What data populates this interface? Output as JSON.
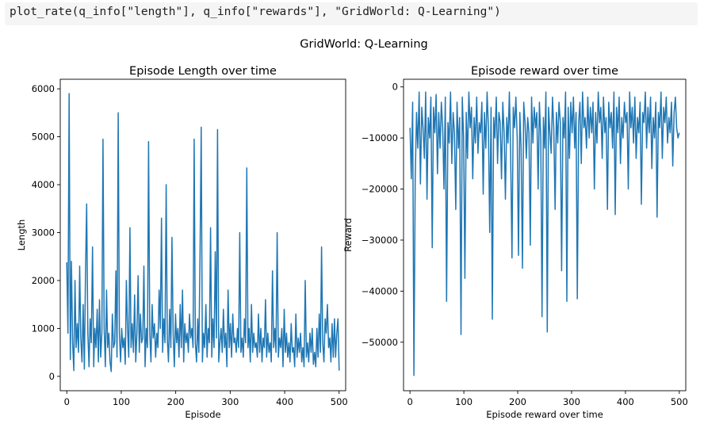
{
  "code": {
    "text": "plot_rate(q_info[\"length\"], q_info[\"rewards\"], \"GridWorld: Q-Learning\")"
  },
  "figure": {
    "suptitle": "GridWorld: Q-Learning",
    "line_color": "#1f77b4"
  },
  "chart_data": [
    {
      "type": "line",
      "title": "Episode Length over time",
      "xlabel": "Episode",
      "ylabel": "Length",
      "xlim": [
        -12,
        512
      ],
      "ylim": [
        -300,
        6200
      ],
      "xticks": [
        0,
        100,
        200,
        300,
        400,
        500
      ],
      "yticks": [
        0,
        1000,
        2000,
        3000,
        4000,
        5000,
        6000
      ],
      "tick_labels_x": [
        "0",
        "100",
        "200",
        "300",
        "400",
        "500"
      ],
      "tick_labels_y": [
        "0",
        "1000",
        "2000",
        "3000",
        "4000",
        "5000",
        "6000"
      ],
      "grid": false,
      "series": [
        {
          "values": [
            2380,
            900,
            5900,
            350,
            2400,
            700,
            120,
            2000,
            600,
            1100,
            500,
            2300,
            800,
            300,
            1500,
            150,
            2100,
            3600,
            900,
            200,
            1200,
            700,
            2700,
            200,
            1000,
            600,
            1400,
            300,
            1600,
            400,
            900,
            4950,
            1000,
            200,
            1800,
            600,
            900,
            300,
            100,
            1300,
            600,
            700,
            2200,
            400,
            5500,
            900,
            300,
            1000,
            600,
            800,
            250,
            2000,
            1000,
            400,
            3100,
            600,
            1100,
            500,
            1700,
            300,
            900,
            2100,
            500,
            1300,
            700,
            800,
            2300,
            200,
            1000,
            600,
            4900,
            900,
            300,
            1500,
            800,
            1100,
            400,
            900,
            600,
            1800,
            1000,
            3300,
            500,
            1200,
            700,
            4000,
            800,
            300,
            1400,
            600,
            2900,
            900,
            200,
            1300,
            700,
            1000,
            400,
            1500,
            600,
            1800,
            300,
            1100,
            700,
            900,
            500,
            1300,
            800,
            1000,
            600,
            4950,
            700,
            300,
            1200,
            500,
            2500,
            5200,
            300,
            900,
            600,
            1500,
            400,
            1000,
            700,
            3100,
            400,
            1200,
            600,
            2600,
            800,
            5150,
            300,
            700,
            1000,
            500,
            1400,
            600,
            900,
            200,
            1800,
            600,
            1100,
            400,
            1300,
            700,
            800,
            500,
            1000,
            600,
            3000,
            500,
            800,
            400,
            1200,
            700,
            4350,
            600,
            1000,
            300,
            1500,
            500,
            900,
            600,
            700,
            400,
            1300,
            500,
            1000,
            300,
            800,
            600,
            1600,
            400,
            900,
            500,
            700,
            300,
            2200,
            600,
            1000,
            500,
            3000,
            400,
            800,
            600,
            1000,
            200,
            1400,
            500,
            900,
            400,
            700,
            300,
            1100,
            500,
            600,
            200,
            1300,
            400,
            800,
            500,
            900,
            300,
            600,
            200,
            2000,
            400,
            700,
            300,
            900,
            500,
            1000,
            250,
            500,
            200,
            1000,
            400,
            1300,
            500,
            2700,
            700,
            300,
            1200,
            900,
            1500,
            600,
            800,
            300,
            1100,
            400,
            1200,
            400,
            900,
            1200,
            120
          ]
        }
      ]
    },
    {
      "type": "line",
      "title": "Episode reward over time",
      "xlabel": "Episode reward over time",
      "ylabel": "Reward",
      "xlim": [
        -12,
        512
      ],
      "ylim": [
        -59500,
        1500
      ],
      "xticks": [
        0,
        100,
        200,
        300,
        400,
        500
      ],
      "yticks": [
        0,
        -10000,
        -20000,
        -30000,
        -40000,
        -50000
      ],
      "tick_labels_x": [
        "0",
        "100",
        "200",
        "300",
        "400",
        "500"
      ],
      "tick_labels_y": [
        "0",
        "−10000",
        "−20000",
        "−30000",
        "−40000",
        "−50000"
      ],
      "grid": false,
      "series": [
        {
          "values": [
            -8000,
            -18000,
            -3000,
            -56500,
            -18500,
            -5000,
            -12000,
            -1000,
            -19000,
            -4000,
            -8000,
            -14000,
            -1000,
            -22000,
            -6000,
            -10000,
            -2000,
            -31500,
            -4000,
            -9000,
            -1500,
            -17000,
            -5000,
            -12000,
            -3000,
            -8000,
            -20000,
            -2000,
            -42000,
            -7000,
            -11000,
            -1000,
            -15000,
            -5000,
            -9000,
            -24000,
            -3000,
            -12000,
            -6000,
            -48500,
            -2000,
            -10000,
            -37500,
            -5000,
            -14000,
            -1000,
            -8000,
            -4000,
            -18000,
            -6000,
            -11000,
            -2000,
            -13000,
            -7000,
            -9000,
            -3000,
            -21000,
            -5000,
            -12000,
            -1000,
            -8000,
            -28500,
            -4000,
            -45500,
            -6000,
            -10000,
            -2000,
            -15000,
            -5000,
            -7000,
            -18000,
            -3000,
            -9000,
            -22000,
            -6000,
            -11000,
            -1000,
            -13000,
            -33500,
            -4000,
            -8000,
            -2000,
            -10000,
            -33000,
            -5000,
            -12000,
            -35500,
            -3000,
            -7000,
            -14000,
            -6000,
            -9000,
            -31000,
            -2000,
            -11000,
            -4000,
            -8000,
            -5000,
            -20000,
            -3000,
            -10000,
            -45000,
            -6000,
            -12000,
            -1000,
            -48000,
            -4000,
            -9000,
            -13000,
            -2000,
            -8000,
            -24000,
            -5000,
            -11000,
            -3000,
            -7000,
            -36000,
            -6000,
            -10000,
            -1000,
            -42000,
            -4000,
            -14000,
            -3000,
            -9000,
            -2000,
            -12000,
            -5000,
            -41500,
            -7000,
            -3000,
            -15000,
            -1000,
            -8000,
            -6000,
            -12000,
            -2000,
            -10000,
            -4000,
            -9000,
            -3000,
            -20000,
            -5000,
            -11000,
            -1000,
            -7000,
            -4000,
            -14000,
            -2000,
            -9000,
            -6000,
            -24000,
            -3000,
            -8000,
            -5000,
            -12000,
            -1000,
            -25000,
            -4000,
            -9000,
            -2000,
            -15000,
            -6000,
            -10000,
            -3000,
            -7000,
            -5000,
            -20000,
            -1000,
            -8000,
            -4000,
            -11000,
            -2000,
            -14000,
            -6000,
            -9000,
            -3000,
            -23000,
            -5000,
            -7000,
            -1000,
            -12000,
            -4000,
            -9000,
            -2000,
            -16000,
            -6000,
            -10000,
            -3000,
            -25500,
            -5000,
            -8000,
            -1000,
            -14000,
            -4000,
            -7000,
            -2000,
            -11000,
            -6000,
            -9000,
            -3000,
            -15500,
            -5000,
            -2000,
            -8000,
            -10000,
            -9000
          ]
        }
      ]
    }
  ]
}
